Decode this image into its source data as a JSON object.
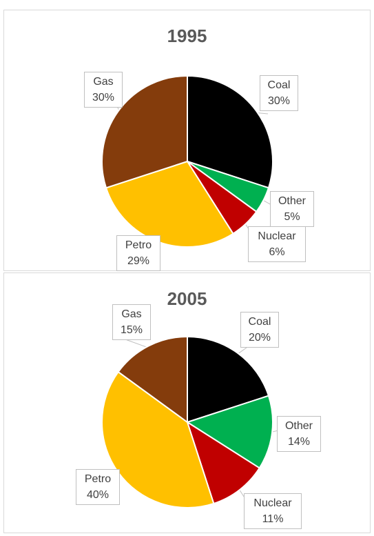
{
  "colors": {
    "Coal": "#000000",
    "Other": "#00b050",
    "Nuclear": "#c00000",
    "Petro": "#ffc000",
    "Gas": "#843c0c"
  },
  "chart_data": [
    {
      "type": "pie",
      "title": "1995",
      "categories": [
        "Coal",
        "Other",
        "Nuclear",
        "Petro",
        "Gas"
      ],
      "values": [
        30,
        5,
        6,
        29,
        30
      ],
      "labels": [
        "30%",
        "5%",
        "6%",
        "29%",
        "30%"
      ]
    },
    {
      "type": "pie",
      "title": "2005",
      "categories": [
        "Coal",
        "Other",
        "Nuclear",
        "Petro",
        "Gas"
      ],
      "values": [
        20,
        14,
        11,
        40,
        15
      ],
      "labels": [
        "20%",
        "14%",
        "11%",
        "40%",
        "15%"
      ]
    }
  ]
}
